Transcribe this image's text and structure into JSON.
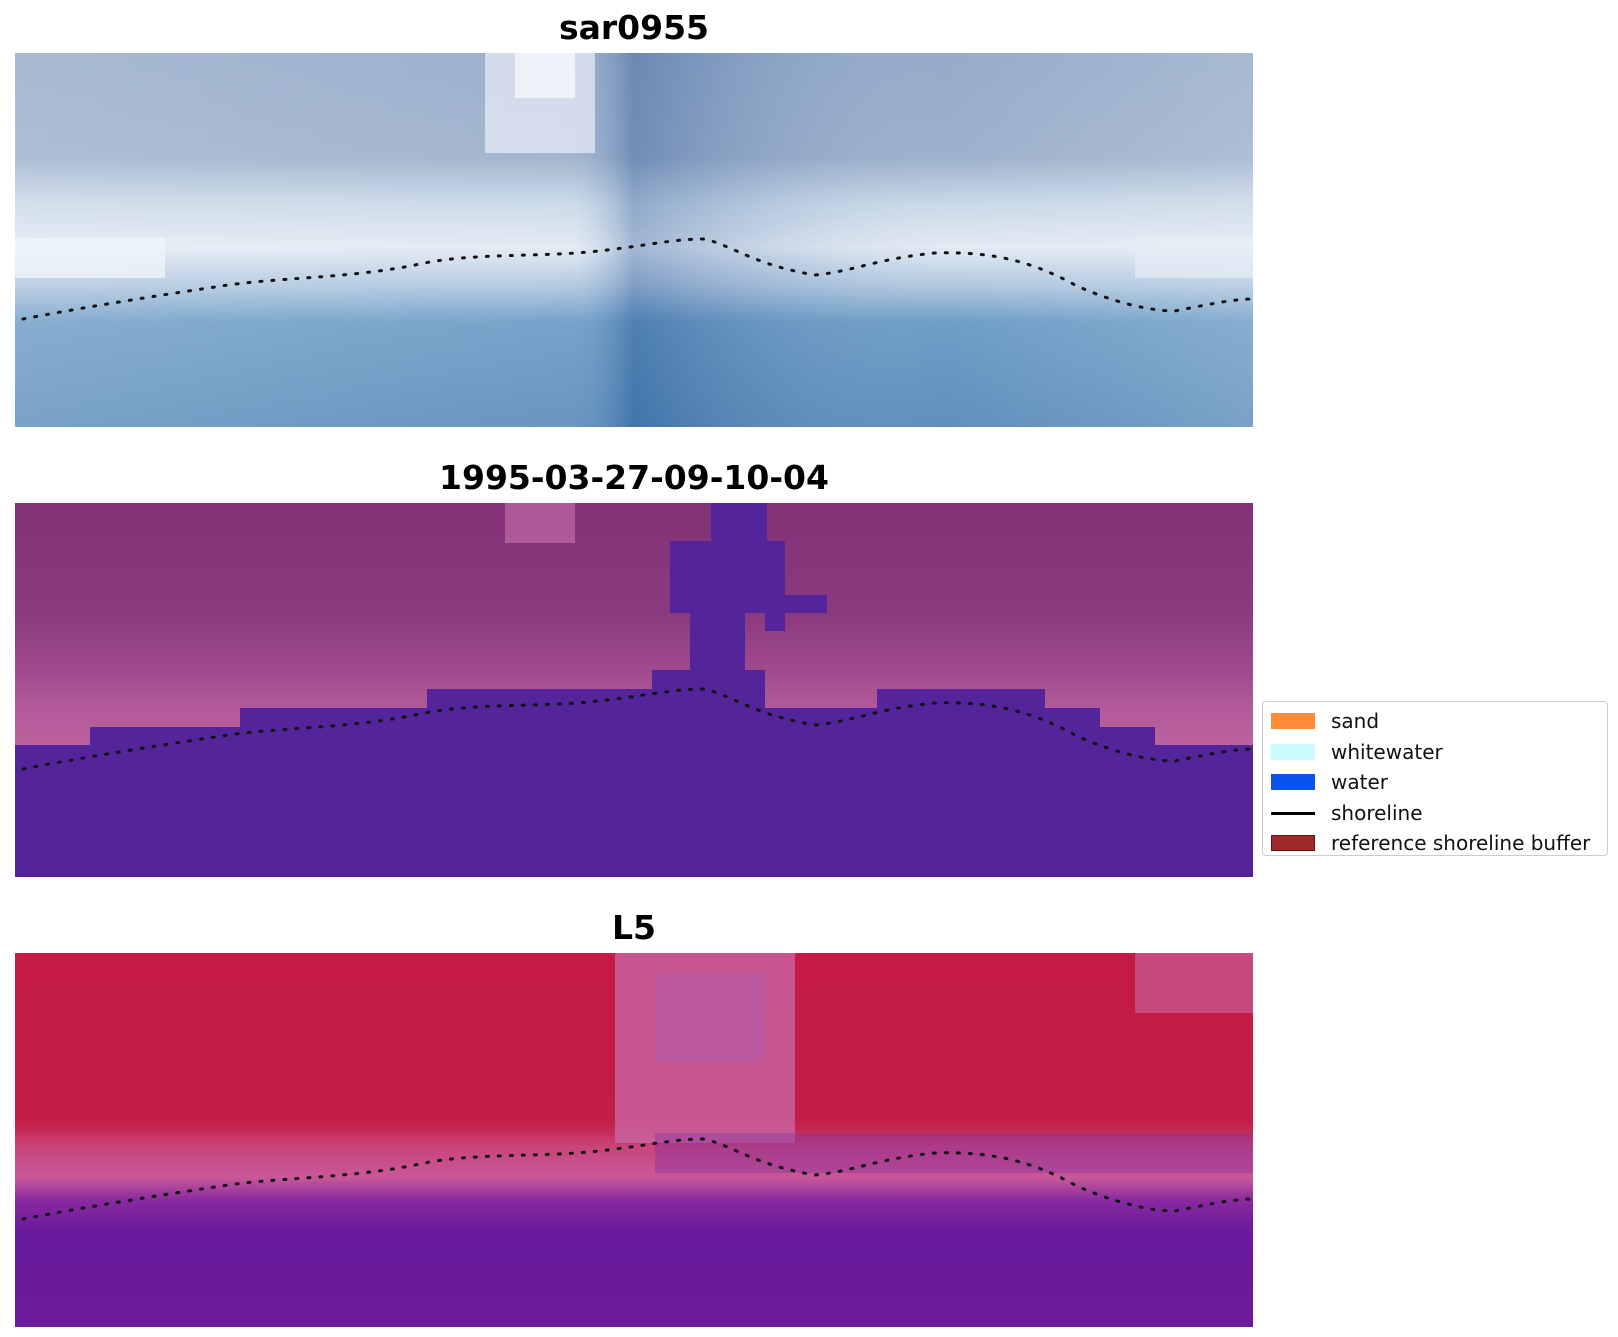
{
  "panels": [
    {
      "title": "sar0955",
      "bg_color": "#5d85b2",
      "top_color": "#7f9bbf",
      "band_colors": [
        "#b8c8dc",
        "#d8e4ee",
        "#eef3f8"
      ],
      "lower_color": "#4e88b8"
    },
    {
      "title": "1995-03-27-09-10-04",
      "bg_color": "#842f78",
      "top_color": "#8a3a7e",
      "band_colors": [
        "#a34a8e",
        "#b35898",
        "#c066a0"
      ],
      "lower_color": "#52249a"
    },
    {
      "title": "L5",
      "bg_color": "#c0204c",
      "top_color": "#c31a42",
      "band_colors": [
        "#c4507c",
        "#c860a0",
        "#b45aa8"
      ],
      "lower_color": "#641a9a"
    }
  ],
  "legend": {
    "items": [
      {
        "label": "sand",
        "color": "#ff8c3a",
        "kind": "patch"
      },
      {
        "label": "whitewater",
        "color": "#c8fcfc",
        "kind": "patch"
      },
      {
        "label": "water",
        "color": "#0a52f0",
        "kind": "patch"
      },
      {
        "label": "shoreline",
        "color": "#000000",
        "kind": "line"
      },
      {
        "label": "reference shoreline buffer",
        "color": "#9c2a2a",
        "kind": "patch"
      }
    ]
  }
}
